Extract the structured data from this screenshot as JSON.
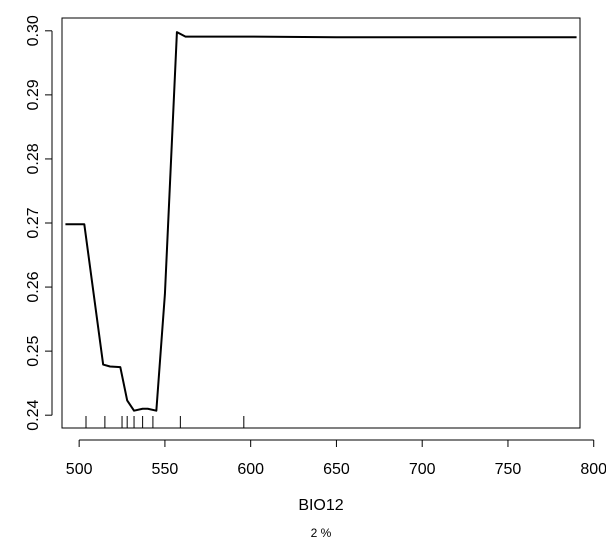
{
  "chart_data": {
    "type": "line",
    "title": "",
    "xlabel": "BIO12",
    "subtitle": "2 %",
    "ylabel": "",
    "xlim": [
      490,
      792
    ],
    "ylim": [
      0.238,
      0.302
    ],
    "x_ticks": [
      500,
      550,
      600,
      650,
      700,
      750,
      800
    ],
    "y_ticks": [
      0.24,
      0.25,
      0.26,
      0.27,
      0.28,
      0.29,
      0.3
    ],
    "x_tick_labels": [
      "500",
      "550",
      "600",
      "650",
      "700",
      "750",
      "800"
    ],
    "y_tick_labels": [
      "0.24",
      "0.25",
      "0.26",
      "0.27",
      "0.28",
      "0.29",
      "0.30"
    ],
    "grid": false,
    "series": [
      {
        "x": [
          492,
          503,
          514,
          518,
          524,
          528,
          532,
          537,
          540,
          545,
          550,
          557,
          562,
          600,
          650,
          700,
          750,
          790
        ],
        "y": [
          0.2698,
          0.2698,
          0.2479,
          0.2476,
          0.2475,
          0.2423,
          0.2407,
          0.241,
          0.241,
          0.2407,
          0.2589,
          0.2998,
          0.2991,
          0.2991,
          0.299,
          0.299,
          0.299,
          0.299
        ]
      }
    ],
    "rug": [
      504,
      515,
      525,
      528,
      532,
      537,
      543,
      559,
      596
    ]
  }
}
